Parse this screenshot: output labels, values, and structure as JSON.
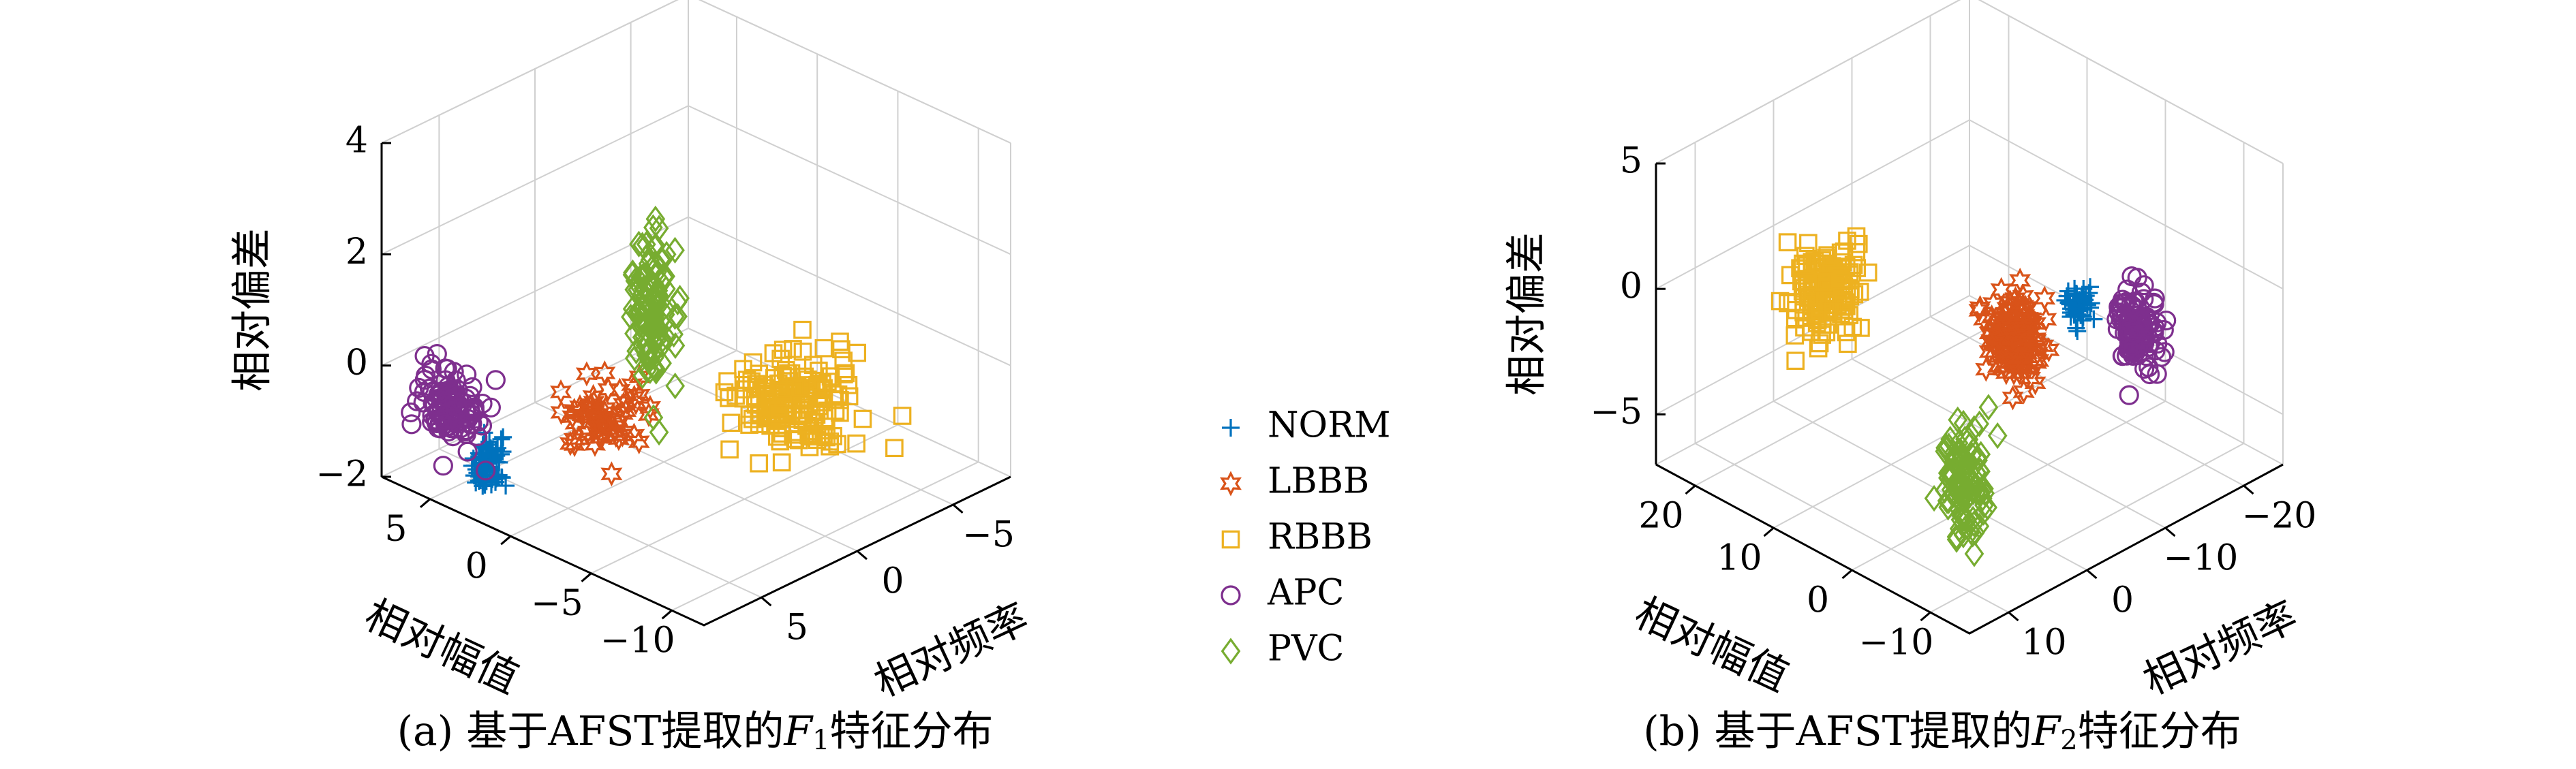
{
  "figure": {
    "legend": [
      {
        "key": "norm",
        "label": "NORM",
        "marker": "plus",
        "color": "#0072BD"
      },
      {
        "key": "lbbb",
        "label": "LBBB",
        "marker": "hexagram",
        "color": "#D95319"
      },
      {
        "key": "rbbb",
        "label": "RBBB",
        "marker": "square",
        "color": "#EDB120"
      },
      {
        "key": "apc",
        "label": "APC",
        "marker": "circle",
        "color": "#7E2F8E"
      },
      {
        "key": "pvc",
        "label": "PVC",
        "marker": "diamond",
        "color": "#77AC30"
      }
    ]
  },
  "chart_data": [
    {
      "type": "scatter",
      "caption_prefix": "(a) 基于AFST提取的",
      "caption_var": "F",
      "caption_sub": "1",
      "caption_suffix": "特征分布",
      "xlabel": "相对频率",
      "ylabel": "相对幅值",
      "zlabel": "相对偏差",
      "xlim": [
        -8,
        8
      ],
      "ylim": [
        -12,
        8
      ],
      "zlim": [
        -2,
        4
      ],
      "xticks": [
        {
          "v": -5,
          "t": "−5"
        },
        {
          "v": 0,
          "t": "0"
        },
        {
          "v": 5,
          "t": "5"
        }
      ],
      "yticks": [
        {
          "v": 5,
          "t": "5"
        },
        {
          "v": 0,
          "t": "0"
        },
        {
          "v": -5,
          "t": "−5"
        },
        {
          "v": -10,
          "t": "−10"
        }
      ],
      "zticks": [
        {
          "v": 4,
          "t": "4"
        },
        {
          "v": 2,
          "t": "2"
        },
        {
          "v": 0,
          "t": "0"
        },
        {
          "v": -2,
          "t": "−2"
        }
      ],
      "grid": true,
      "clusters": [
        {
          "series": "norm",
          "center": [
            7.2,
            2.3,
            -1.15
          ],
          "spread": [
            0.35,
            0.35,
            0.22
          ],
          "count": 70
        },
        {
          "series": "apc",
          "center": [
            7.6,
            4.2,
            -0.3
          ],
          "spread": [
            0.35,
            0.9,
            0.32
          ],
          "count": 110
        },
        {
          "series": "lbbb",
          "center": [
            4.5,
            -1.5,
            -0.25
          ],
          "spread": [
            0.8,
            1.0,
            0.3
          ],
          "count": 60
        },
        {
          "series": "rbbb",
          "center": [
            -2.4,
            -5.4,
            -0.55
          ],
          "spread": [
            1.2,
            1.3,
            0.35
          ],
          "count": 160
        },
        {
          "series": "pvc",
          "center": [
            3.6,
            -3.5,
            1.7
          ],
          "spread": [
            0.4,
            0.5,
            0.75
          ],
          "count": 120
        }
      ]
    },
    {
      "type": "scatter",
      "caption_prefix": "(b) 基于AFST提取的",
      "caption_var": "F",
      "caption_sub": "2",
      "caption_suffix": "特征分布",
      "xlabel": "相对频率",
      "ylabel": "相对幅值",
      "zlabel": "相对偏差",
      "xlim": [
        -25,
        15
      ],
      "ylim": [
        -15,
        25
      ],
      "zlim": [
        -7,
        5
      ],
      "xticks": [
        {
          "v": -20,
          "t": "−20"
        },
        {
          "v": -10,
          "t": "−10"
        },
        {
          "v": 0,
          "t": "0"
        },
        {
          "v": 10,
          "t": "10"
        }
      ],
      "yticks": [
        {
          "v": 20,
          "t": "20"
        },
        {
          "v": 10,
          "t": "10"
        },
        {
          "v": 0,
          "t": "0"
        },
        {
          "v": -10,
          "t": "−10"
        }
      ],
      "zticks": [
        {
          "v": 5,
          "t": "5"
        },
        {
          "v": 0,
          "t": "0"
        },
        {
          "v": -5,
          "t": "−5"
        }
      ],
      "grid": true,
      "clusters": [
        {
          "series": "rbbb",
          "center": [
            6.6,
            11.7,
            0.7
          ],
          "spread": [
            1.5,
            1.6,
            0.9
          ],
          "count": 140
        },
        {
          "series": "norm",
          "center": [
            -6.0,
            -7.7,
            1.3
          ],
          "spread": [
            0.6,
            0.6,
            0.35
          ],
          "count": 50
        },
        {
          "series": "apc",
          "center": [
            -12.0,
            -9.5,
            -0.3
          ],
          "spread": [
            1.0,
            1.0,
            0.7
          ],
          "count": 110
        },
        {
          "series": "lbbb",
          "center": [
            -4.5,
            -1.3,
            -0.9
          ],
          "spread": [
            1.1,
            1.2,
            0.9
          ],
          "count": 130
        },
        {
          "series": "pvc",
          "center": [
            7.2,
            -6.7,
            -4.0
          ],
          "spread": [
            1.0,
            1.0,
            1.2
          ],
          "count": 110
        }
      ]
    }
  ]
}
